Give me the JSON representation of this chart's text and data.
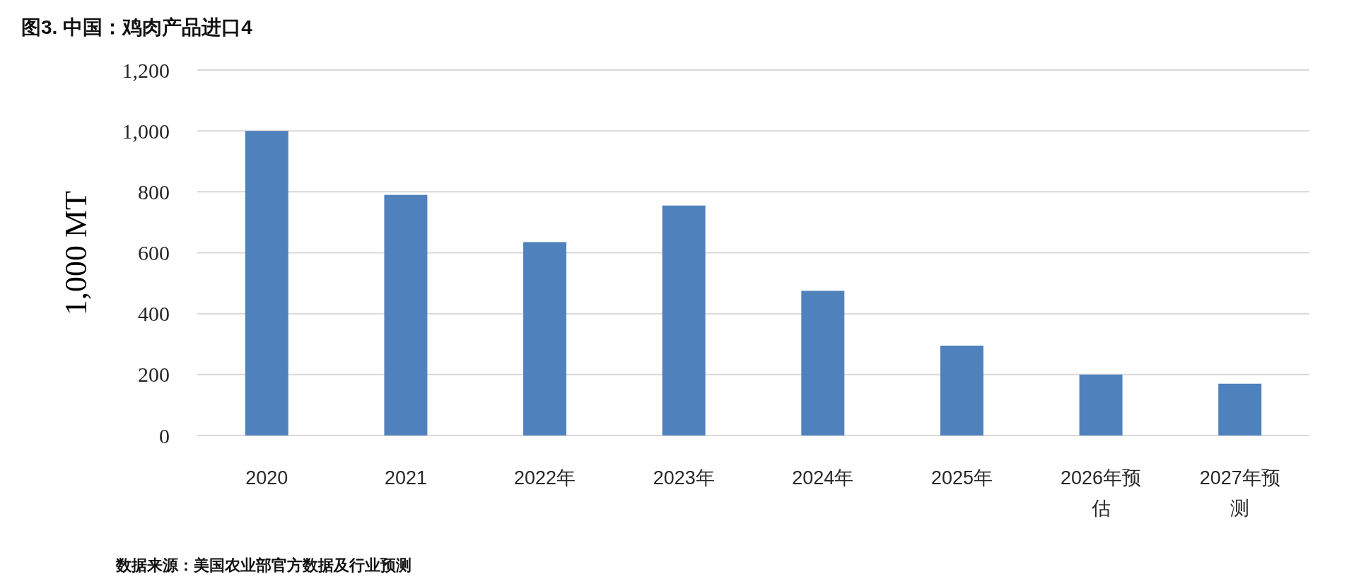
{
  "chart_data": {
    "type": "bar",
    "title": "图3. 中国：鸡肉产品进口4",
    "ylabel": "1,000 MT",
    "categories": [
      "2020",
      "2021",
      "2022年",
      "2023年",
      "2024年",
      "2025年",
      "2026年预估",
      "2027年预测"
    ],
    "values": [
      1000,
      790,
      635,
      755,
      475,
      295,
      200,
      170
    ],
    "color": "#4f81bd",
    "ylim": [
      0,
      1200
    ],
    "yticks": [
      0,
      200,
      400,
      600,
      800,
      {
        "value": 1000,
        "label": "1,000"
      },
      {
        "value": 1200,
        "label": "1,200"
      }
    ],
    "grid": "y",
    "annotations": [
      "数据来源：美国农业部官方数据及行业预测"
    ]
  }
}
